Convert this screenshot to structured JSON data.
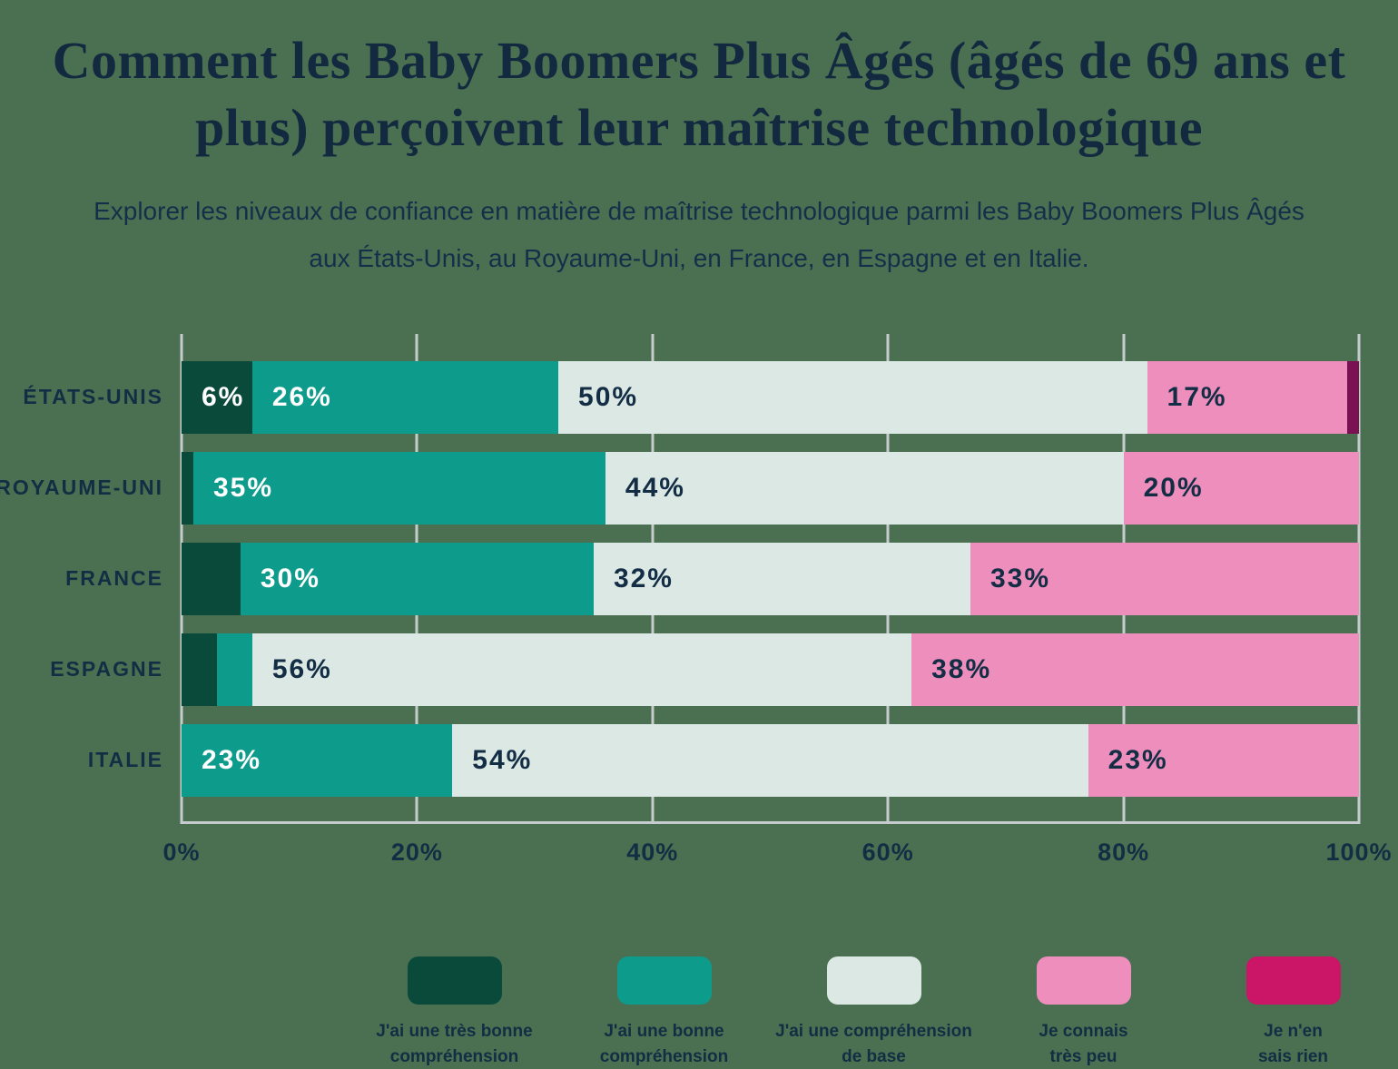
{
  "title": "Comment les Baby Boomers Plus Âgés (âgés de 69 ans et plus) perçoivent leur maîtrise technologique",
  "subtitle": "Explorer les niveaux de confiance en matière de maîtrise technologique parmi les Baby Boomers Plus Âgés aux États-Unis, au Royaume-Uni, en France, en Espagne et en Italie.",
  "colors": {
    "background": "#4a7051",
    "text_navy": "#132d44",
    "gridline": "#c6cccd",
    "dark_green": "#0a4a3b",
    "teal": "#0d9b8c",
    "light_base": "#dce8e4",
    "pink": "#ee8ebc",
    "crimson": "#cb1566",
    "dark_plum": "#7a1152"
  },
  "chart_data": {
    "type": "bar",
    "stacked": true,
    "orientation": "horizontal",
    "title": "Comment les Baby Boomers Plus Âgés (âgés de 69 ans et plus) perçoivent leur maîtrise technologique",
    "categories": [
      "ÉTATS-UNIS",
      "ROYAUME-UNI",
      "FRANCE",
      "ESPAGNE",
      "ITALIE"
    ],
    "series": [
      {
        "name": "J'ai une très bonne compréhension",
        "legend_label": "J'ai une très bonne\ncompréhension",
        "color": "#0a4a3b",
        "bar_color": "#0a4a3b",
        "label_style": "light",
        "values": [
          6,
          1,
          5,
          3,
          0
        ]
      },
      {
        "name": "J'ai une bonne compréhension",
        "legend_label": "J'ai une bonne\ncompréhension",
        "color": "#0d9b8c",
        "bar_color": "#0d9b8c",
        "label_style": "light",
        "values": [
          26,
          35,
          30,
          3,
          23
        ]
      },
      {
        "name": "J'ai une compréhension de base",
        "legend_label": "J'ai une compréhension\nde base",
        "color": "#dce8e4",
        "bar_color": "#dce8e4",
        "label_style": "dark",
        "values": [
          50,
          44,
          32,
          56,
          54
        ]
      },
      {
        "name": "Je connais très peu",
        "legend_label": "Je connais\ntrès peu",
        "color": "#ee8ebc",
        "bar_color": "#ee8ebc",
        "label_style": "dark",
        "values": [
          17,
          20,
          33,
          38,
          23
        ]
      },
      {
        "name": "Je n'en sais rien",
        "legend_label": "Je n'en\nsais rien",
        "color": "#cb1566",
        "bar_color": "#7a1152",
        "label_style": "light",
        "values": [
          1,
          0,
          0,
          0,
          0
        ]
      }
    ],
    "x_ticks": [
      "0%",
      "20%",
      "40%",
      "60%",
      "80%",
      "100%"
    ],
    "x_tick_values": [
      0,
      20,
      40,
      60,
      80,
      100
    ],
    "xlim": [
      0,
      100
    ],
    "value_suffix": "%",
    "label_threshold": 6,
    "grid": "vertical",
    "legend_position": "bottom"
  }
}
